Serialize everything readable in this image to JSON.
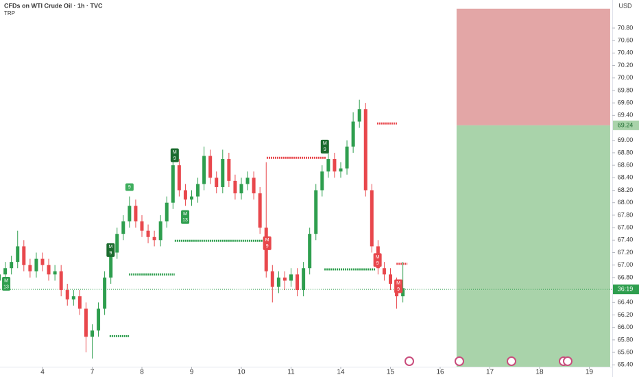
{
  "chart_data": {
    "type": "candlestick",
    "title": "CFDs on WTI Crude Oil · 1h · TVC",
    "indicator": "TRP",
    "currency": "USD",
    "up_color": "#2e9e4e",
    "down_color": "#e8474c",
    "grid": false,
    "xlim": [
      -0.855,
      11.462
    ],
    "ylim": [
      65.37,
      71.25
    ],
    "xticks": [
      {
        "value": 0,
        "label": "4"
      },
      {
        "value": 1,
        "label": "7"
      },
      {
        "value": 2,
        "label": "8"
      },
      {
        "value": 3,
        "label": "9"
      },
      {
        "value": 4,
        "label": "10"
      },
      {
        "value": 5,
        "label": "11"
      },
      {
        "value": 6,
        "label": "14"
      },
      {
        "value": 7,
        "label": "15"
      },
      {
        "value": 8,
        "label": "16"
      },
      {
        "value": 9,
        "label": "17"
      },
      {
        "value": 10,
        "label": "18"
      },
      {
        "value": 11,
        "label": "19"
      }
    ],
    "yticks": [
      {
        "value": 65.4,
        "label": "65.40"
      },
      {
        "value": 65.6,
        "label": "65.60"
      },
      {
        "value": 65.8,
        "label": "65.80"
      },
      {
        "value": 66.0,
        "label": "66.00"
      },
      {
        "value": 66.2,
        "label": "66.20"
      },
      {
        "value": 66.4,
        "label": "66.40"
      },
      {
        "value": 66.8,
        "label": "66.80"
      },
      {
        "value": 67.0,
        "label": "67.00"
      },
      {
        "value": 67.2,
        "label": "67.20"
      },
      {
        "value": 67.4,
        "label": "67.40"
      },
      {
        "value": 67.6,
        "label": "67.60"
      },
      {
        "value": 67.8,
        "label": "67.80"
      },
      {
        "value": 68.0,
        "label": "68.00"
      },
      {
        "value": 68.2,
        "label": "68.20"
      },
      {
        "value": 68.4,
        "label": "68.40"
      },
      {
        "value": 68.6,
        "label": "68.60"
      },
      {
        "value": 68.8,
        "label": "68.80"
      },
      {
        "value": 69.0,
        "label": "69.00"
      },
      {
        "value": 69.4,
        "label": "69.40"
      },
      {
        "value": 69.6,
        "label": "69.60"
      },
      {
        "value": 69.8,
        "label": "69.80"
      },
      {
        "value": 70.0,
        "label": "70.00"
      },
      {
        "value": 70.2,
        "label": "70.20"
      },
      {
        "value": 70.4,
        "label": "70.40"
      },
      {
        "value": 70.6,
        "label": "70.60"
      },
      {
        "value": 70.8,
        "label": "70.80"
      }
    ],
    "x": [
      -0.875,
      -0.75,
      -0.625,
      -0.5,
      -0.375,
      -0.25,
      -0.125,
      0,
      0.125,
      0.25,
      0.375,
      0.5,
      0.625,
      0.75,
      0.875,
      1,
      1.125,
      1.25,
      1.375,
      1.5,
      1.625,
      1.75,
      1.875,
      2,
      2.125,
      2.25,
      2.375,
      2.5,
      2.625,
      2.75,
      2.875,
      3,
      3.125,
      3.25,
      3.375,
      3.5,
      3.625,
      3.75,
      3.875,
      4,
      4.125,
      4.25,
      4.375,
      4.5,
      4.625,
      4.75,
      4.875,
      5,
      5.125,
      5.25,
      5.375,
      5.5,
      5.625,
      5.75,
      5.875,
      6,
      6.125,
      6.25,
      6.375,
      6.5,
      6.625,
      6.75,
      6.875,
      7,
      7.125,
      7.25
    ],
    "open": [
      66.75,
      66.85,
      66.95,
      67.05,
      67.3,
      67.0,
      66.9,
      67.1,
      67.0,
      66.85,
      66.9,
      66.6,
      66.45,
      66.5,
      66.3,
      65.85,
      65.95,
      66.3,
      66.8,
      67.2,
      67.5,
      67.7,
      67.95,
      67.7,
      67.55,
      67.45,
      67.4,
      67.7,
      68.0,
      68.6,
      68.2,
      68.05,
      68.1,
      68.3,
      68.75,
      68.4,
      68.25,
      68.7,
      68.35,
      68.15,
      68.3,
      68.4,
      68.15,
      67.6,
      66.9,
      66.65,
      66.8,
      66.75,
      66.85,
      66.6,
      66.95,
      67.5,
      68.2,
      68.5,
      68.7,
      68.5,
      68.55,
      68.9,
      69.3,
      69.5,
      68.2,
      67.3,
      66.95,
      66.85,
      66.7,
      66.5
    ],
    "high": [
      66.95,
      67.05,
      67.15,
      67.55,
      67.4,
      67.1,
      67.2,
      67.2,
      67.1,
      67.0,
      67.0,
      66.7,
      66.6,
      66.6,
      66.4,
      66.05,
      66.4,
      66.9,
      67.3,
      67.6,
      67.8,
      68.1,
      68.05,
      67.8,
      67.65,
      67.55,
      67.8,
      68.1,
      68.85,
      68.7,
      68.3,
      68.2,
      68.4,
      68.9,
      68.85,
      68.5,
      68.85,
      68.8,
      68.45,
      68.4,
      68.5,
      68.5,
      68.25,
      68.65,
      67.0,
      66.9,
      66.9,
      66.95,
      66.95,
      67.05,
      67.6,
      68.3,
      68.6,
      68.85,
      68.8,
      68.65,
      69.0,
      69.45,
      69.65,
      69.6,
      68.3,
      67.4,
      67.05,
      66.95,
      66.8,
      67.05
    ],
    "low": [
      66.65,
      66.75,
      66.85,
      66.95,
      66.9,
      66.8,
      66.8,
      66.9,
      66.75,
      66.75,
      66.5,
      66.35,
      66.35,
      66.2,
      65.6,
      65.5,
      65.85,
      66.2,
      66.7,
      67.1,
      67.4,
      67.6,
      67.6,
      67.45,
      67.35,
      67.3,
      67.3,
      67.6,
      67.9,
      68.1,
      67.95,
      67.95,
      68.0,
      68.2,
      68.3,
      68.15,
      68.15,
      68.25,
      68.05,
      68.05,
      68.2,
      68.05,
      67.5,
      66.8,
      66.4,
      66.55,
      66.6,
      66.65,
      66.5,
      66.5,
      66.85,
      67.4,
      68.1,
      68.4,
      68.4,
      68.4,
      68.45,
      68.8,
      69.2,
      68.1,
      67.2,
      66.85,
      66.75,
      66.6,
      66.3,
      66.4
    ],
    "close": [
      66.85,
      66.95,
      67.05,
      67.3,
      67.0,
      66.9,
      67.1,
      67.0,
      66.85,
      66.9,
      66.6,
      66.45,
      66.5,
      66.3,
      65.85,
      65.95,
      66.3,
      66.8,
      67.2,
      67.5,
      67.7,
      67.95,
      67.7,
      67.55,
      67.45,
      67.4,
      67.7,
      68.0,
      68.6,
      68.2,
      68.05,
      68.1,
      68.3,
      68.75,
      68.4,
      68.25,
      68.7,
      68.35,
      68.15,
      68.3,
      68.4,
      68.15,
      67.6,
      66.9,
      66.65,
      66.8,
      66.75,
      66.85,
      66.6,
      66.95,
      67.5,
      68.2,
      68.5,
      68.7,
      68.5,
      68.55,
      68.9,
      69.3,
      69.5,
      68.2,
      67.3,
      66.95,
      66.85,
      66.7,
      66.5,
      66.63
    ],
    "current_price": 66.61,
    "countdown": "36:19",
    "levels": [
      {
        "value": 65.86,
        "x0": 1.35,
        "x1": 1.74,
        "color": "#2e9e4e"
      },
      {
        "value": 66.85,
        "x0": 1.74,
        "x1": 2.66,
        "color": "#2e9e4e"
      },
      {
        "value": 67.39,
        "x0": 2.66,
        "x1": 4.43,
        "color": "#2e9e4e"
      },
      {
        "value": 68.72,
        "x0": 4.51,
        "x1": 5.7,
        "color": "#e8474c"
      },
      {
        "value": 66.93,
        "x0": 5.67,
        "x1": 6.7,
        "color": "#2e9e4e"
      },
      {
        "value": 69.27,
        "x0": 6.73,
        "x1": 7.14,
        "color": "#e8474c"
      },
      {
        "value": 67.02,
        "x0": 7.12,
        "x1": 7.34,
        "color": "#e8474c"
      }
    ],
    "markers": [
      {
        "x": -0.73,
        "value": 66.7,
        "top": "M",
        "label": "13",
        "color": "#2e9e4e"
      },
      {
        "x": 1.37,
        "value": 67.24,
        "top": "M",
        "label": "9",
        "color": "#1b6b2e"
      },
      {
        "x": 1.75,
        "value": 68.25,
        "label": "9",
        "color": "#3fae5e"
      },
      {
        "x": 2.66,
        "value": 68.76,
        "top": "M",
        "label": "9",
        "color": "#1b6b2e"
      },
      {
        "x": 2.87,
        "value": 67.77,
        "top": "M",
        "label": "13",
        "color": "#2e9e4e"
      },
      {
        "x": 4.52,
        "value": 67.35,
        "top": "M",
        "label": "9",
        "color": "#e8474c"
      },
      {
        "x": 5.68,
        "value": 68.9,
        "top": "M",
        "label": "9",
        "color": "#1b6b2e"
      },
      {
        "x": 6.74,
        "value": 67.08,
        "top": "M",
        "label": "9",
        "color": "#e8474c"
      },
      {
        "x": 7.16,
        "value": 66.66,
        "top": "M",
        "label": "9",
        "color": "#e8474c"
      }
    ],
    "position": {
      "stop": 71.11,
      "entry": 69.24,
      "entry_label": "69.24",
      "target": 65.37,
      "x0": 8.33,
      "x1": 11.42,
      "stop_color": "#e3a6a6",
      "target_color": "#a9d3aa"
    }
  }
}
